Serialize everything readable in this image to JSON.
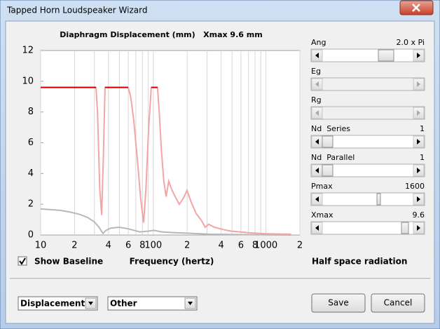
{
  "window": {
    "title": "Tapped Horn Loudspeaker Wizard",
    "sliders": [
      {
        "label": "Ang",
        "value": "2.0 x Pi"
      },
      {
        "label": "Eg"
      },
      {
        "label": "Rg"
      },
      {
        "label": "Nd  Series",
        "value": 1
      },
      {
        "label": "Nd  Parallel",
        "value": 1
      },
      {
        "label": "Pmax",
        "value": 1600
      },
      {
        "label": "Xmax",
        "value": 9.6
      }
    ],
    "checkbox": {
      "label": "Show Baseline",
      "checked": true
    },
    "radiation": "Half space radiation",
    "dropdowns": [
      "Displacement",
      "Other"
    ],
    "buttons": [
      "Save",
      "Cancel"
    ]
  },
  "chart_data": {
    "type": "line",
    "title": "Diaphragm Displacement (mm)   Xmax 9.6 mm",
    "xlabel": "Frequency (hertz)",
    "xscale": "log",
    "xlim": [
      10,
      2000
    ],
    "ylim": [
      0,
      12
    ],
    "yticks": [
      0,
      2,
      4,
      6,
      8,
      10,
      12
    ],
    "xticks": [
      10,
      {
        "value": 20,
        "label": "2"
      },
      {
        "value": 40,
        "label": "4"
      },
      {
        "value": 60,
        "label": "6"
      },
      {
        "value": 80,
        "label": "8"
      },
      100,
      {
        "value": 200,
        "label": "2"
      },
      {
        "value": 400,
        "label": "4"
      },
      {
        "value": 600,
        "label": "6"
      },
      {
        "value": 800,
        "label": "8"
      },
      1000,
      {
        "value": 2000,
        "label": "2"
      }
    ],
    "xminorticks": [
      30,
      50,
      70,
      90,
      300,
      500,
      700,
      900
    ],
    "grid": true,
    "limit_color": "#cc0000",
    "series": [
      {
        "color": "#f4a4a4",
        "x": [
          10,
          31,
          32,
          33.5,
          34.8,
          36,
          37.3,
          38.5,
          50,
          59.8,
          63,
          67,
          72,
          77,
          82,
          86,
          91,
          96,
          109,
          113,
          118,
          124,
          130,
          137,
          145,
          156,
          170,
          185,
          199,
          215,
          240,
          270,
          289,
          310,
          350,
          420,
          490,
          700,
          1000,
          1670
        ],
        "values": [
          9.6,
          9.6,
          8,
          3,
          1.3,
          5,
          9.6,
          9.6,
          9.6,
          9.6,
          9,
          7.5,
          5,
          2.5,
          0.8,
          3,
          7,
          9.6,
          9.6,
          8,
          5.5,
          3.5,
          2.5,
          3.5,
          3,
          2.5,
          2,
          2.4,
          2.9,
          2.2,
          1.4,
          0.9,
          0.5,
          0.7,
          0.5,
          0.35,
          0.25,
          0.15,
          0.08,
          0.05
        ]
      },
      {
        "color": "#b8b8b8",
        "x": [
          10,
          12,
          15,
          18,
          22,
          26,
          30,
          33,
          35.7,
          38,
          42,
          50,
          60,
          76,
          90,
          101,
          120,
          156,
          200,
          320,
          500,
          1000,
          1670
        ],
        "values": [
          1.7,
          1.65,
          1.6,
          1.5,
          1.35,
          1.15,
          0.85,
          0.5,
          0.1,
          0.3,
          0.45,
          0.5,
          0.4,
          0.2,
          0.25,
          0.3,
          0.2,
          0.15,
          0.12,
          0.05,
          0.03,
          0.01,
          0
        ]
      }
    ]
  }
}
